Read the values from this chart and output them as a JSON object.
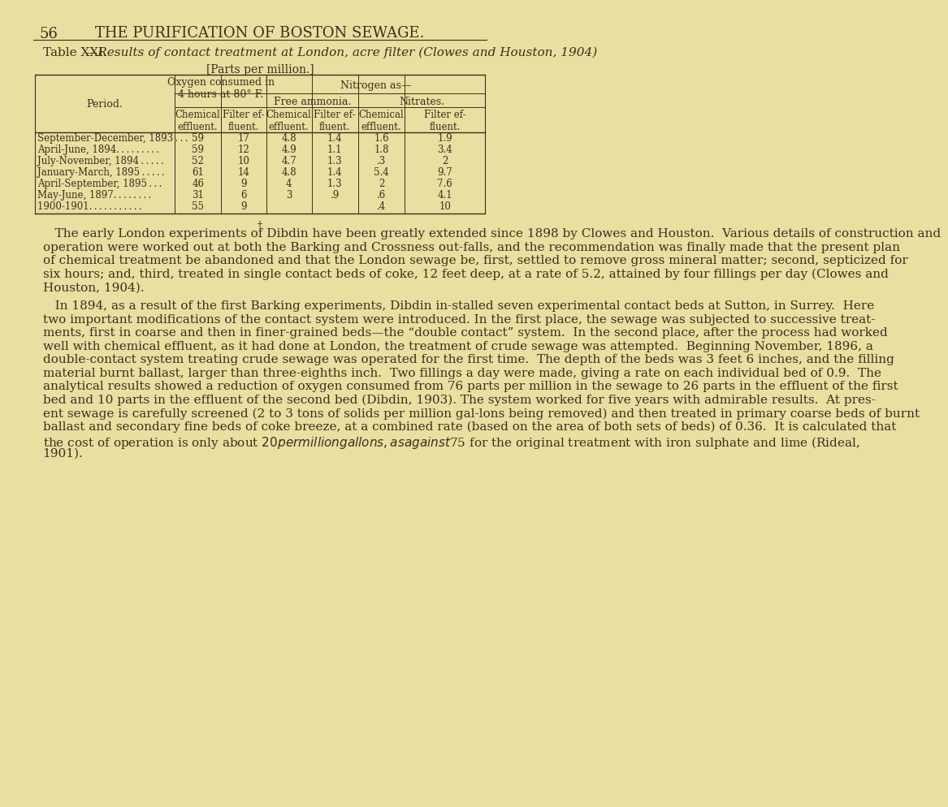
{
  "bg_color": "#e8dfa0",
  "page_number": "56",
  "header": "THE PURIFICATION OF BOSTON SEWAGE.",
  "table_title_roman": "Table XXI.",
  "table_title_italic": "—Results of contact treatment at London, acre filter (Clowes and Houston, 1904)",
  "table_subtitle": "[Parts per million.]",
  "rows": [
    [
      "September-December, 1893 . . .",
      "59",
      "17",
      "4.8",
      "1.4",
      "1.6",
      "1.9"
    ],
    [
      "April-June, 1894. . . . . . . . .",
      "59",
      "12",
      "4.9",
      "1.1",
      "1.8",
      "3.4"
    ],
    [
      "July-November, 1894 . . . . .",
      "52",
      "10",
      "4.7",
      "1.3",
      ".3",
      "2"
    ],
    [
      "January-March, 1895 . . . . .",
      "61",
      "14",
      "4.8",
      "1.4",
      "5.4",
      "9.7"
    ],
    [
      "April-September, 1895 . . .",
      "46",
      "9",
      "4",
      "1.3",
      "2",
      "7.6"
    ],
    [
      "May-June, 1897. . . . . . . .",
      "31",
      "6",
      "3",
      ".9",
      ".6",
      "4.1"
    ],
    [
      "1900-1901. . . . . . . . . . .",
      "55",
      "9",
      "",
      "",
      ".4",
      "10"
    ]
  ],
  "body_paragraphs": [
    [
      "   The early London experiments of Dibdin have been greatly extended since 1898 by Clowes and Houston.  Various details of construction and",
      "operation were worked out at both the Barking and Crossness out-falls, and the recommendation was finally made that the present plan",
      "of chemical treatment be abandoned and that the London sewage be, first, settled to remove gross mineral matter; second, septicized for",
      "six hours; and, third, treated in single contact beds of coke, 12 feet deep, at a rate of 5.2, attained by four fillings per day (Clowes and",
      "Houston, 1904)."
    ],
    [
      "   In 1894, as a result of the first Barking experiments, Dibdin in-stalled seven experimental contact beds at Sutton, in Surrey.  Here",
      "two important modifications of the contact system were introduced. In the first place, the sewage was subjected to successive treat-",
      "ments, first in coarse and then in finer-grained beds—the “double contact” system.  In the second place, after the process had worked",
      "well with chemical effluent, as it had done at London, the treatment of crude sewage was attempted.  Beginning November, 1896, a",
      "double-contact system treating crude sewage was operated for the first time.  The depth of the beds was 3 feet 6 inches, and the filling",
      "material burnt ballast, larger than three-eighths inch.  Two fillings a day were made, giving a rate on each individual bed of 0.9.  The",
      "analytical results showed a reduction of oxygen consumed from 76 parts per million in the sewage to 26 parts in the effluent of the first",
      "bed and 10 parts in the effluent of the second bed (Dibdin, 1903). The system worked for five years with admirable results.  At pres-",
      "ent sewage is carefully screened (2 to 3 tons of solids per million gal-lons being removed) and then treated in primary coarse beds of burnt",
      "ballast and secondary fine beds of coke breeze, at a combined rate (based on the area of both sets of beds) of 0.36.  It is calculated that",
      "the cost of operation is only about $20 per million gallons, as against $75 for the original treatment with iron sulphate and lime (Rideal,",
      "1901)."
    ]
  ]
}
